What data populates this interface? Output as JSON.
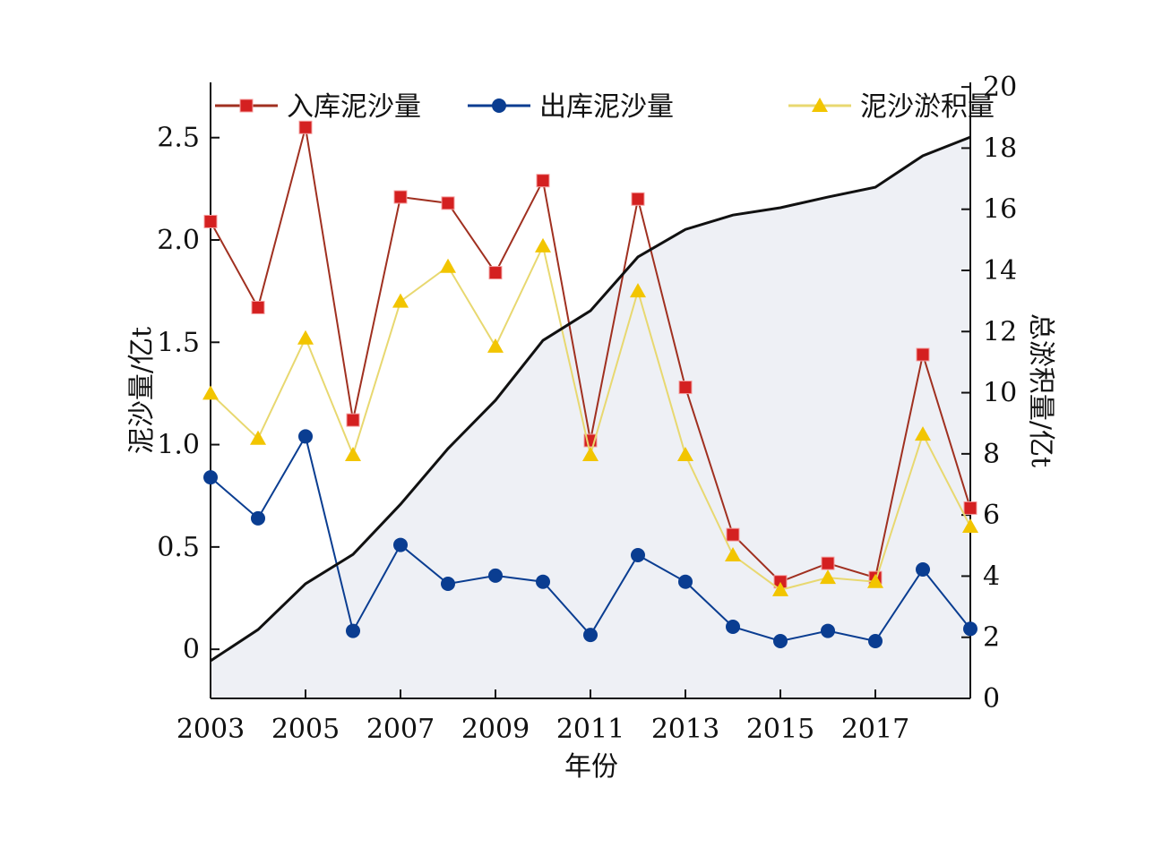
{
  "chart_data": {
    "type": "line",
    "title": "",
    "xlabel": "年份",
    "ylabel": "泥沙量/亿t",
    "y2label": "总淤积量/亿t",
    "x": [
      2003,
      2004,
      2005,
      2006,
      2007,
      2008,
      2009,
      2010,
      2011,
      2012,
      2013,
      2014,
      2015,
      2016,
      2017,
      2018,
      2019
    ],
    "xticks": [
      "2003",
      "2005",
      "2007",
      "2009",
      "2011",
      "2013",
      "2015",
      "2017"
    ],
    "yticks": [
      "0",
      "0.5",
      "1.0",
      "1.5",
      "2.0",
      "2.5"
    ],
    "y2ticks": [
      "0",
      "2",
      "4",
      "6",
      "8",
      "10",
      "12",
      "14",
      "16",
      "18",
      "20"
    ],
    "ylim": [
      -0.24,
      2.77
    ],
    "y2lim": [
      0,
      20.15
    ],
    "xlim": [
      2003,
      2019
    ],
    "legend_position": "top",
    "grid": false,
    "series": [
      {
        "name": "入库泥沙量",
        "axis": "left",
        "color": "#d42020",
        "line_color": "#a03020",
        "marker": "square",
        "values": [
          2.09,
          1.67,
          2.55,
          1.12,
          2.21,
          2.18,
          1.84,
          2.29,
          1.02,
          2.2,
          1.28,
          0.56,
          0.33,
          0.42,
          0.35,
          1.44,
          0.69
        ]
      },
      {
        "name": "出库泥沙量",
        "axis": "left",
        "color": "#0a3d91",
        "line_color": "#0a3d91",
        "marker": "circle",
        "values": [
          0.84,
          0.64,
          1.04,
          0.09,
          0.51,
          0.32,
          0.36,
          0.33,
          0.07,
          0.46,
          0.33,
          0.11,
          0.04,
          0.09,
          0.04,
          0.39,
          0.1
        ]
      },
      {
        "name": "泥沙淤积量",
        "axis": "left",
        "color": "#f2c500",
        "line_color": "#e8d870",
        "marker": "triangle",
        "values": [
          1.25,
          1.03,
          1.52,
          0.95,
          1.7,
          1.87,
          1.48,
          1.97,
          0.95,
          1.75,
          0.95,
          0.46,
          0.29,
          0.35,
          0.33,
          1.05,
          0.6
        ]
      },
      {
        "axis": "right",
        "color": "#111111",
        "fill": "#eef0f5",
        "marker": "none",
        "values": [
          1.23,
          2.25,
          3.75,
          4.71,
          6.35,
          8.17,
          9.75,
          11.71,
          12.68,
          14.44,
          15.34,
          15.81,
          16.05,
          16.4,
          16.72,
          17.75,
          18.36
        ]
      }
    ]
  }
}
